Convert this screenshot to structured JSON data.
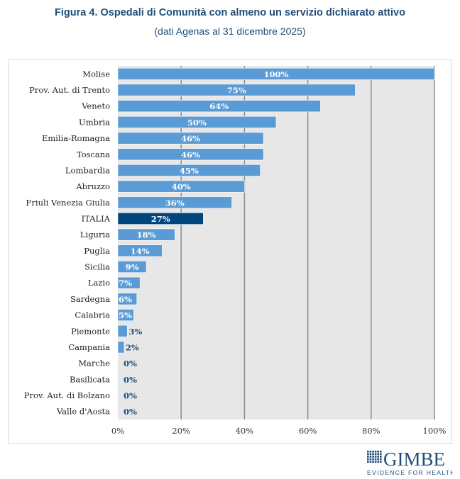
{
  "figure": {
    "title": "Figura 4. Ospedali di Comunità con almeno un servizio dichiarato attivo",
    "subtitle": "(dati Agenas al 31 dicembre 2025)"
  },
  "logo": {
    "name": "GIMBE",
    "tagline": "EVIDENCE FOR HEALTH"
  },
  "colors": {
    "bar": "#5b9bd5",
    "highlight_bar": "#00457e",
    "plot_background": "#e7e7e7",
    "gridline": "#8c8c8c",
    "label_inside": "#ffffff",
    "label_outside": "#1f4e79"
  },
  "chart_data": {
    "type": "bar",
    "orientation": "horizontal",
    "title": "Figura 4. Ospedali di Comunità con almeno un servizio dichiarato attivo",
    "subtitle": "(dati Agenas al 31 dicembre 2025)",
    "xlabel": "",
    "ylabel": "",
    "xlim": [
      0,
      100
    ],
    "x_ticks": [
      "0%",
      "20%",
      "40%",
      "60%",
      "80%",
      "100%"
    ],
    "x_tick_values": [
      0,
      20,
      40,
      60,
      80,
      100
    ],
    "grid": true,
    "legend": "none",
    "highlight": "ITALIA",
    "categories": [
      "Molise",
      "Prov. Aut. di Trento",
      "Veneto",
      "Umbria",
      "Emilia-Romagna",
      "Toscana",
      "Lombardia",
      "Abruzzo",
      "Friuli Venezia Giulia",
      "ITALIA",
      "Liguria",
      "Puglia",
      "Sicilia",
      "Lazio",
      "Sardegna",
      "Calabria",
      "Piemonte",
      "Campania",
      "Marche",
      "Basilicata",
      "Prov. Aut. di Bolzano",
      "Valle d'Aosta"
    ],
    "values": [
      100,
      75,
      64,
      50,
      46,
      46,
      45,
      40,
      36,
      27,
      18,
      14,
      9,
      7,
      6,
      5,
      3,
      2,
      0,
      0,
      0,
      0
    ],
    "value_labels": [
      "100%",
      "75%",
      "64%",
      "50%",
      "46%",
      "46%",
      "45%",
      "40%",
      "36%",
      "27%",
      "18%",
      "14%",
      "9%",
      "7%",
      "6%",
      "5%",
      "3%",
      "2%",
      "0%",
      "0%",
      "0%",
      "0%"
    ]
  }
}
